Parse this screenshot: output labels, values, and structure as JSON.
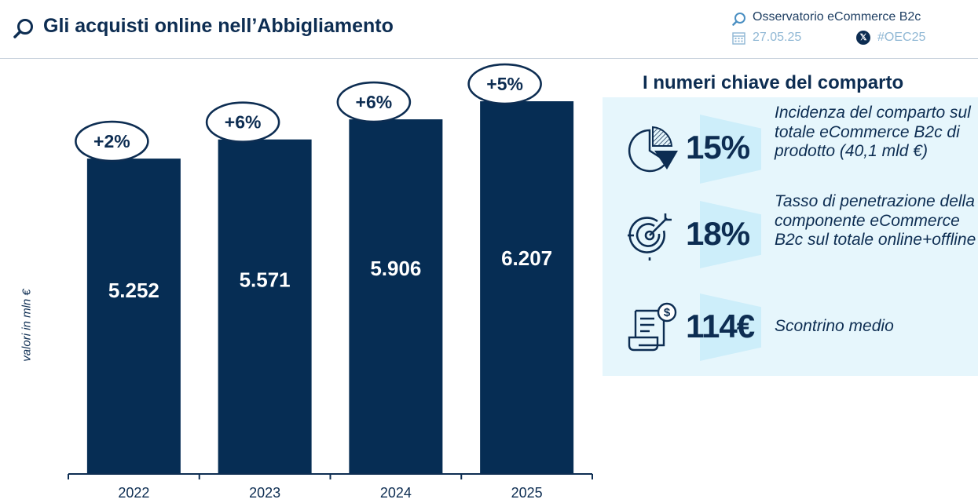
{
  "header": {
    "title": "Gli acquisti online nell’Abbigliamento",
    "observatory": "Osservatorio eCommerce B2c",
    "date": "27.05.25",
    "hashtag": "#OEC25"
  },
  "chart_data": {
    "type": "bar",
    "categories": [
      "2022",
      "2023",
      "2024",
      "2025"
    ],
    "values": [
      5252,
      5571,
      5906,
      6207
    ],
    "value_labels": [
      "5.252",
      "5.571",
      "5.906",
      "6.207"
    ],
    "growth_labels": [
      "+2%",
      "+6%",
      "+6%",
      "+5%"
    ],
    "ylabel": "valori in mln €",
    "ylim": [
      0,
      6900
    ],
    "grid": false,
    "bar_color": "#062d54"
  },
  "kpis": {
    "title": "I numeri chiave del comparto",
    "items": [
      {
        "icon": "pie-chart-icon",
        "value": "15%",
        "description": "Incidenza del comparto sul totale eCommerce B2c di prodotto (40,1 mld €)"
      },
      {
        "icon": "target-icon",
        "value": "18%",
        "description": "Tasso di penetrazione della componente eCommerce B2c sul totale online+offline"
      },
      {
        "icon": "receipt-icon",
        "value": "114€",
        "description": "Scontrino medio"
      }
    ]
  }
}
